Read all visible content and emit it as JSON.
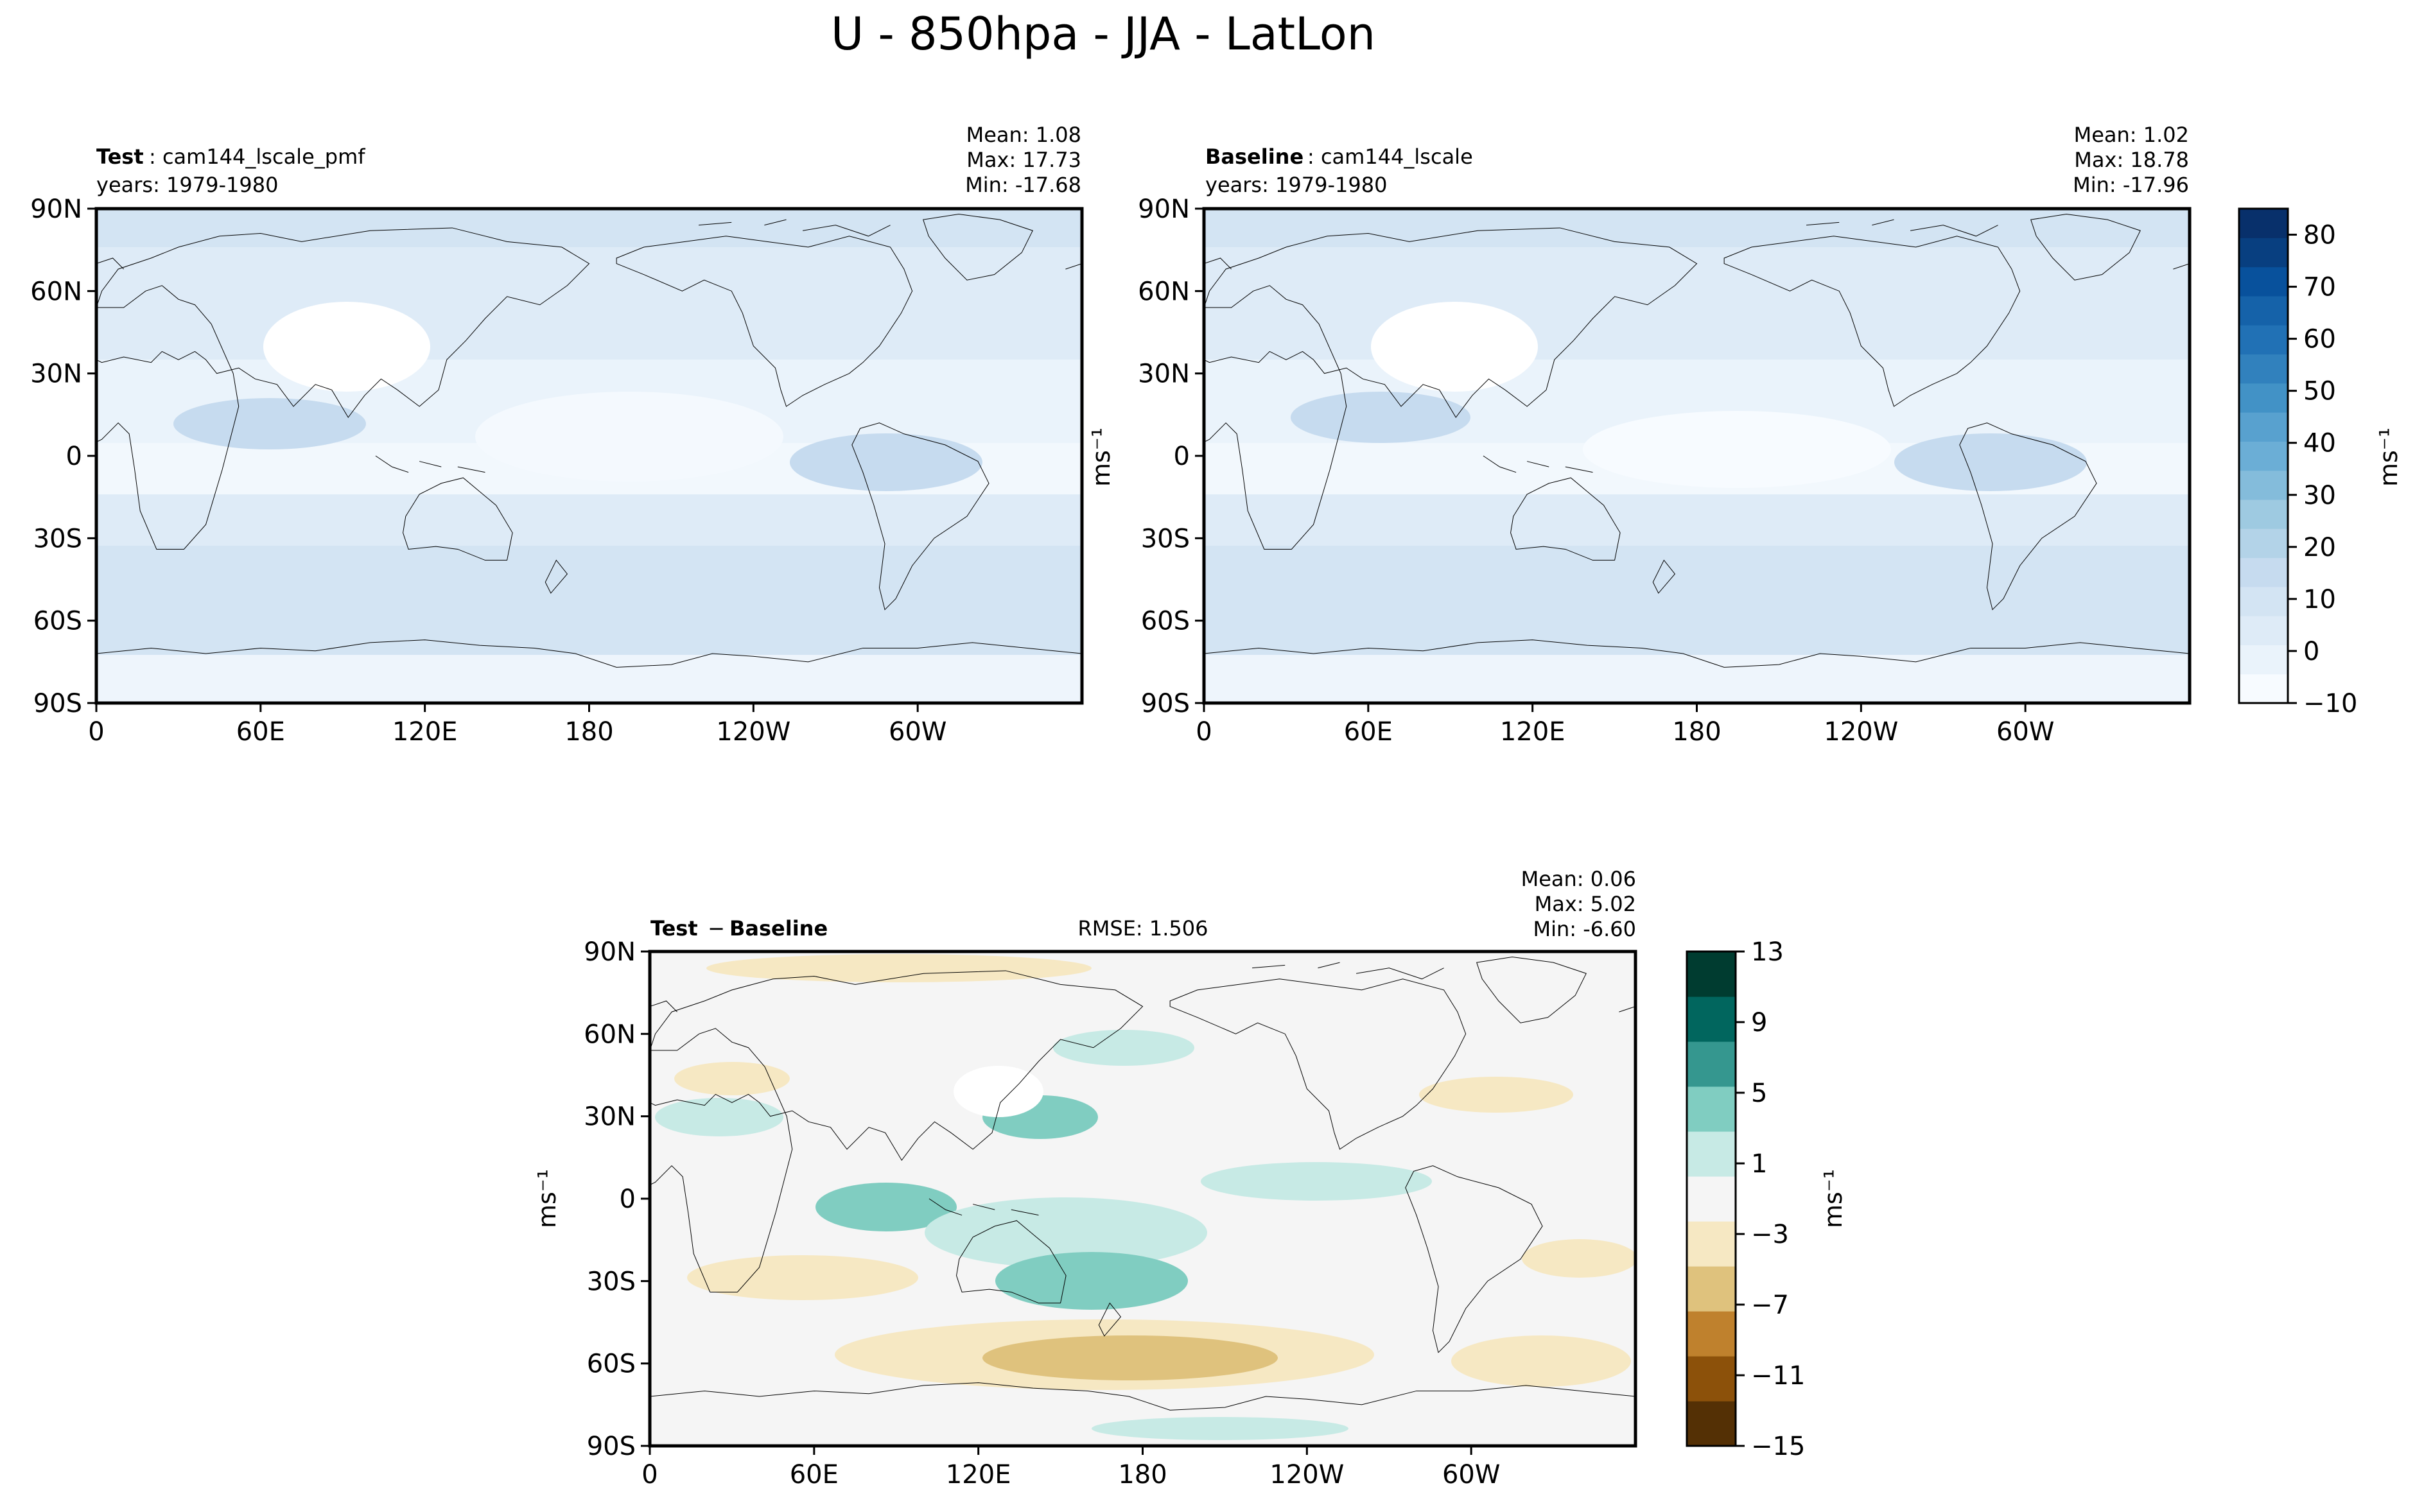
{
  "figure": {
    "title": "U - 850hpa - JJA - LatLon"
  },
  "axis_ticks": {
    "lon_labels": [
      "0",
      "60E",
      "120E",
      "180",
      "120W",
      "60W"
    ],
    "lat_labels": [
      "90N",
      "60N",
      "30N",
      "0",
      "30S",
      "60S",
      "90S"
    ]
  },
  "unit_label": "ms⁻¹",
  "panels": {
    "test": {
      "name_bold": "Test",
      "name_rest": ": cam144_lscale_pmf",
      "years": "years: 1979-1980",
      "stats_mean": "Mean:  1.08",
      "stats_max": "Max: 17.73",
      "stats_min": "Min: -17.68"
    },
    "baseline": {
      "name_bold": "Baseline",
      "name_rest": ": cam144_lscale",
      "years": "years: 1979-1980",
      "stats_mean": "Mean:  1.02",
      "stats_max": "Max: 18.78",
      "stats_min": "Min: -17.96"
    },
    "diff": {
      "name_bold_a": "Test",
      "name_minus": " − ",
      "name_bold_b": "Baseline",
      "rmse": "RMSE: 1.506",
      "stats_mean": "Mean:  0.06",
      "stats_max": "Max:  5.02",
      "stats_min": "Min: -6.60"
    }
  },
  "colorbars": {
    "top": {
      "ticks": [
        "−10",
        "0",
        "10",
        "20",
        "30",
        "40",
        "50",
        "60",
        "70",
        "80"
      ],
      "colors": [
        "#f7fbff",
        "#eaf3fb",
        "#deebf7",
        "#d3e4f3",
        "#c6dbef",
        "#b3d3e8",
        "#9ecae1",
        "#84bcdb",
        "#6baed6",
        "#58a1cf",
        "#4292c6",
        "#3181bd",
        "#2171b5",
        "#1562a9",
        "#08519c",
        "#083f80",
        "#08306b"
      ]
    },
    "diff": {
      "ticks": [
        "−15",
        "−11",
        "−7",
        "−3",
        "1",
        "5",
        "9",
        "13"
      ],
      "colors": [
        "#543005",
        "#8c510a",
        "#bf812d",
        "#dfc27d",
        "#f6e8c3",
        "#f5f5f5",
        "#c7eae5",
        "#80cdc1",
        "#35978f",
        "#01665e",
        "#003c30"
      ]
    }
  },
  "chart_data": [
    {
      "type": "heatmap",
      "title": "Test: cam144_lscale_pmf",
      "subtitle": "years: 1979-1980",
      "stats": {
        "mean": 1.08,
        "max": 17.73,
        "min": -17.68
      },
      "x_ticks": [
        "0",
        "60E",
        "120E",
        "180",
        "120W",
        "60W"
      ],
      "y_ticks": [
        "90N",
        "60N",
        "30N",
        "0",
        "30S",
        "60S",
        "90S"
      ],
      "colorbar": {
        "label": "ms⁻¹",
        "range": [
          -10,
          85
        ],
        "ticks": [
          -10,
          0,
          10,
          20,
          30,
          40,
          50,
          60,
          70,
          80
        ]
      }
    },
    {
      "type": "heatmap",
      "title": "Baseline: cam144_lscale",
      "subtitle": "years: 1979-1980",
      "stats": {
        "mean": 1.02,
        "max": 18.78,
        "min": -17.96
      },
      "x_ticks": [
        "0",
        "60E",
        "120E",
        "180",
        "120W",
        "60W"
      ],
      "y_ticks": [
        "90N",
        "60N",
        "30N",
        "0",
        "30S",
        "60S",
        "90S"
      ],
      "colorbar": {
        "label": "ms⁻¹",
        "range": [
          -10,
          85
        ],
        "ticks": [
          -10,
          0,
          10,
          20,
          30,
          40,
          50,
          60,
          70,
          80
        ]
      }
    },
    {
      "type": "heatmap",
      "title": "Test − Baseline",
      "rmse": 1.506,
      "stats": {
        "mean": 0.06,
        "max": 5.02,
        "min": -6.6
      },
      "x_ticks": [
        "0",
        "60E",
        "120E",
        "180",
        "120W",
        "60W"
      ],
      "y_ticks": [
        "90N",
        "60N",
        "30N",
        "0",
        "30S",
        "60S",
        "90S"
      ],
      "colorbar": {
        "label": "ms⁻¹",
        "range": [
          -15,
          13
        ],
        "ticks": [
          -15,
          -11,
          -7,
          -3,
          1,
          5,
          9,
          13
        ]
      }
    }
  ]
}
